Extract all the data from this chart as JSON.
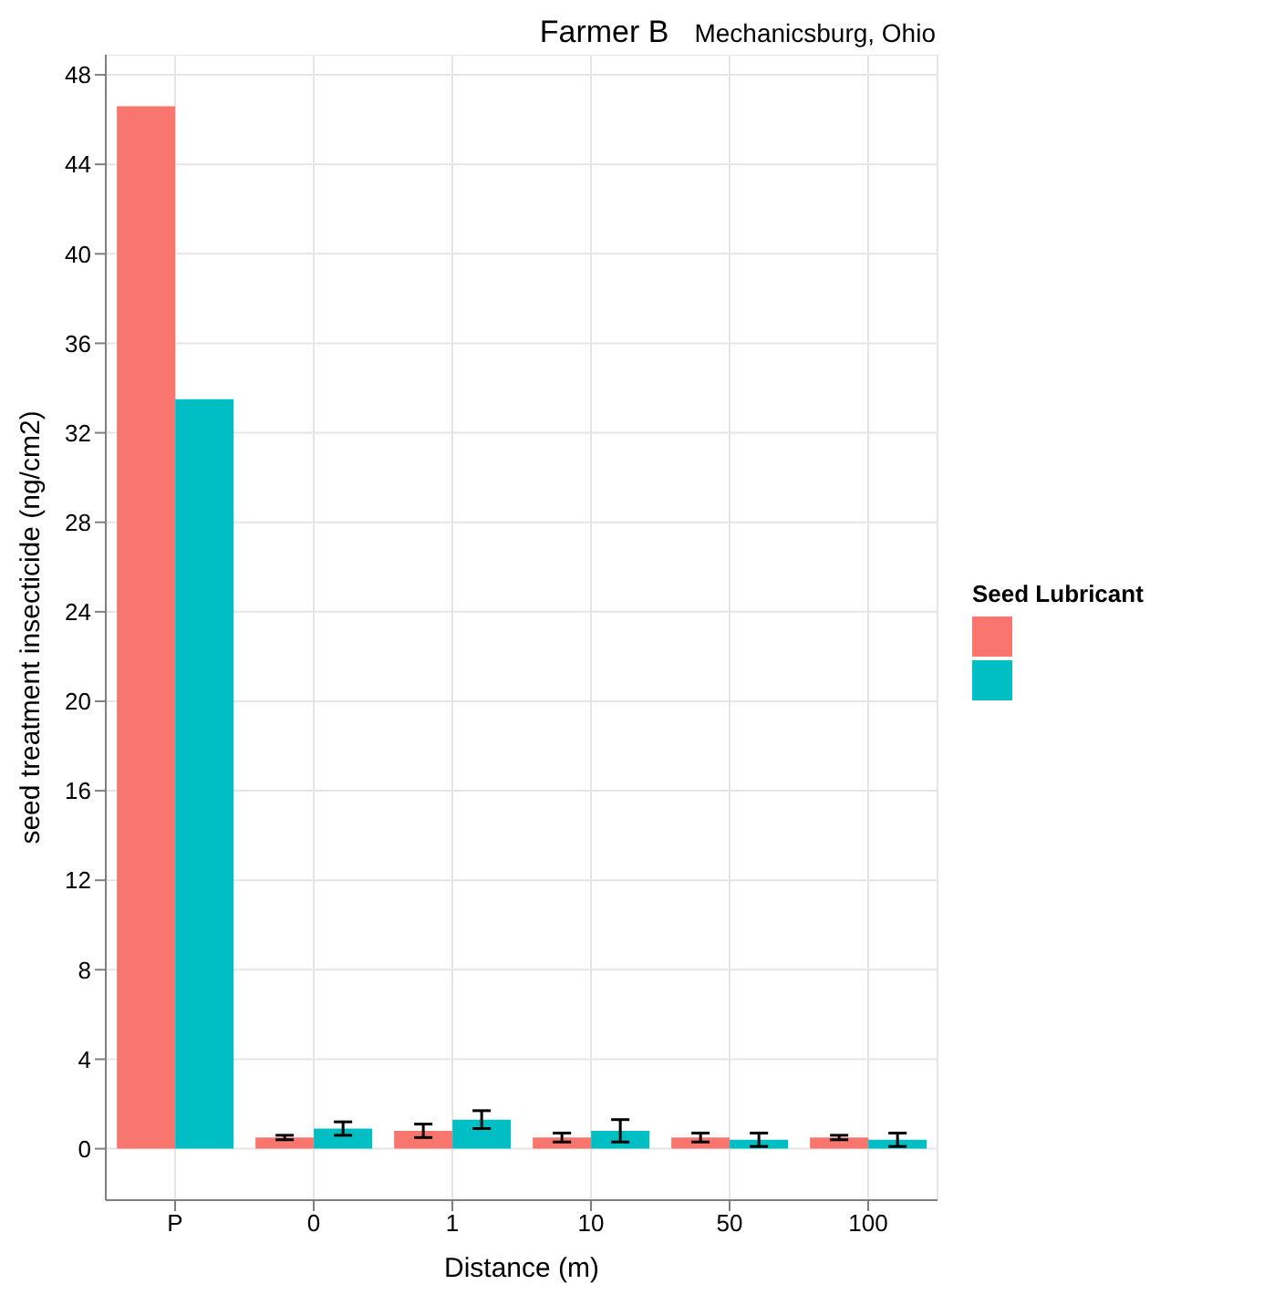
{
  "chart_data": {
    "type": "bar",
    "title": "Farmer B",
    "subtitle": "Mechanicsburg, Ohio",
    "xlabel": "Distance (m)",
    "ylabel": "seed treatment insecticide (ng/cm2)",
    "legend_title": "Seed Lubricant",
    "categories": [
      "P",
      "0",
      "1",
      "10",
      "50",
      "100"
    ],
    "series": [
      {
        "color": "#f8766d",
        "values": [
          46.6,
          0.5,
          0.8,
          0.5,
          0.5,
          0.5
        ],
        "errors": [
          null,
          0.1,
          0.3,
          0.2,
          0.2,
          0.1
        ]
      },
      {
        "color": "#00bfc4",
        "values": [
          33.5,
          0.9,
          1.3,
          0.8,
          0.4,
          0.4
        ],
        "errors": [
          null,
          0.3,
          0.4,
          0.5,
          0.3,
          0.3
        ]
      }
    ],
    "ylim": [
      -2.3,
      48.9
    ],
    "yticks": [
      0,
      4,
      8,
      12,
      16,
      20,
      24,
      28,
      32,
      36,
      40,
      44,
      48
    ],
    "grid": true
  }
}
